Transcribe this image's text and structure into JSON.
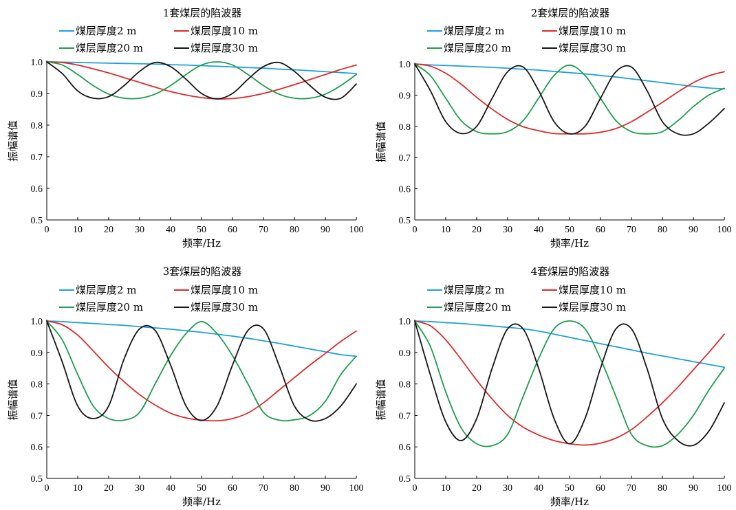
{
  "colors": {
    "series": [
      "#1ea0dc",
      "#e02828",
      "#1a9e4a",
      "#141414"
    ],
    "axis": "#000000"
  },
  "legend_placement": "top",
  "chart_data": [
    {
      "type": "line",
      "title": "1套煤层的陷波器",
      "xlabel": "频率/Hz",
      "ylabel": "振幅谱值",
      "xlim": [
        0,
        100
      ],
      "ylim": [
        0.5,
        1.0
      ],
      "xticks": [
        "0",
        "10",
        "20",
        "30",
        "40",
        "50",
        "60",
        "70",
        "80",
        "90",
        "100"
      ],
      "yticks": [
        "0.5",
        "0.6",
        "0.7",
        "0.8",
        "0.9",
        "1.0"
      ],
      "grid": false,
      "x": [
        0,
        5,
        10,
        15,
        20,
        25,
        30,
        35,
        40,
        45,
        50,
        55,
        60,
        65,
        70,
        75,
        80,
        85,
        90,
        95,
        100
      ],
      "series": [
        {
          "name": "煤层厚度2 m",
          "values": [
            1.0,
            0.999,
            0.998,
            0.997,
            0.996,
            0.995,
            0.994,
            0.993,
            0.991,
            0.99,
            0.988,
            0.986,
            0.984,
            0.982,
            0.98,
            0.977,
            0.975,
            0.972,
            0.969,
            0.966,
            0.963
          ]
        },
        {
          "name": "煤层厚度10 m",
          "values": [
            1.0,
            0.998,
            0.99,
            0.978,
            0.965,
            0.95,
            0.935,
            0.92,
            0.906,
            0.895,
            0.887,
            0.883,
            0.884,
            0.89,
            0.9,
            0.913,
            0.928,
            0.944,
            0.96,
            0.976,
            0.99
          ]
        },
        {
          "name": "煤层厚度20 m",
          "values": [
            1.0,
            0.99,
            0.96,
            0.925,
            0.898,
            0.885,
            0.885,
            0.898,
            0.925,
            0.96,
            0.99,
            1.0,
            0.99,
            0.96,
            0.925,
            0.898,
            0.885,
            0.885,
            0.898,
            0.925,
            0.96
          ]
        },
        {
          "name": "煤层厚度30 m",
          "values": [
            1.0,
            0.963,
            0.908,
            0.885,
            0.89,
            0.925,
            0.97,
            0.998,
            0.985,
            0.945,
            0.9,
            0.883,
            0.9,
            0.945,
            0.985,
            0.998,
            0.97,
            0.925,
            0.888,
            0.885,
            0.93
          ]
        }
      ]
    },
    {
      "type": "line",
      "title": "2套煤层的陷波器",
      "xlabel": "频率/Hz",
      "ylabel": "振幅谱值",
      "xlim": [
        0,
        100
      ],
      "ylim": [
        0.5,
        1.0
      ],
      "xticks": [
        "0",
        "10",
        "20",
        "30",
        "40",
        "50",
        "60",
        "70",
        "80",
        "90",
        "100"
      ],
      "yticks": [
        "0.5",
        "0.6",
        "0.7",
        "0.8",
        "0.9",
        "1.0"
      ],
      "grid": false,
      "x": [
        0,
        5,
        10,
        15,
        20,
        25,
        30,
        35,
        40,
        45,
        50,
        55,
        60,
        65,
        70,
        75,
        80,
        85,
        90,
        95,
        100
      ],
      "series": [
        {
          "name": "煤层厚度2 m",
          "values": [
            1.0,
            0.997,
            0.995,
            0.993,
            0.991,
            0.989,
            0.986,
            0.983,
            0.98,
            0.976,
            0.972,
            0.968,
            0.963,
            0.958,
            0.952,
            0.946,
            0.94,
            0.934,
            0.928,
            0.923,
            0.92
          ]
        },
        {
          "name": "煤层厚度10 m",
          "values": [
            1.0,
            0.993,
            0.97,
            0.935,
            0.893,
            0.855,
            0.822,
            0.799,
            0.786,
            0.777,
            0.776,
            0.776,
            0.781,
            0.793,
            0.815,
            0.845,
            0.877,
            0.91,
            0.94,
            0.962,
            0.975
          ]
        },
        {
          "name": "煤层厚度20 m",
          "values": [
            1.0,
            0.963,
            0.89,
            0.818,
            0.783,
            0.776,
            0.783,
            0.818,
            0.89,
            0.963,
            0.996,
            0.963,
            0.89,
            0.818,
            0.783,
            0.776,
            0.783,
            0.818,
            0.863,
            0.9,
            0.922
          ]
        },
        {
          "name": "煤层厚度30 m",
          "values": [
            1.0,
            0.915,
            0.815,
            0.777,
            0.8,
            0.89,
            0.975,
            0.99,
            0.915,
            0.815,
            0.776,
            0.8,
            0.89,
            0.975,
            0.99,
            0.915,
            0.815,
            0.776,
            0.776,
            0.81,
            0.857
          ]
        }
      ]
    },
    {
      "type": "line",
      "title": "3套煤层的陷波器",
      "xlabel": "频率/Hz",
      "ylabel": "振幅谱值",
      "xlim": [
        0,
        100
      ],
      "ylim": [
        0.5,
        1.0
      ],
      "xticks": [
        "0",
        "10",
        "20",
        "30",
        "40",
        "50",
        "60",
        "70",
        "80",
        "90",
        "100"
      ],
      "yticks": [
        "0.5",
        "0.6",
        "0.7",
        "0.8",
        "0.9",
        "1.0"
      ],
      "grid": false,
      "x": [
        0,
        5,
        10,
        15,
        20,
        25,
        30,
        35,
        40,
        45,
        50,
        55,
        60,
        65,
        70,
        75,
        80,
        85,
        90,
        95,
        100
      ],
      "series": [
        {
          "name": "煤层厚度2 m",
          "values": [
            1.0,
            0.998,
            0.995,
            0.992,
            0.989,
            0.986,
            0.982,
            0.978,
            0.974,
            0.969,
            0.964,
            0.958,
            0.952,
            0.945,
            0.937,
            0.929,
            0.92,
            0.911,
            0.902,
            0.893,
            0.888
          ]
        },
        {
          "name": "煤层厚度10 m",
          "values": [
            1.0,
            0.988,
            0.955,
            0.905,
            0.853,
            0.807,
            0.766,
            0.733,
            0.707,
            0.692,
            0.685,
            0.683,
            0.69,
            0.708,
            0.74,
            0.78,
            0.82,
            0.86,
            0.897,
            0.935,
            0.968
          ]
        },
        {
          "name": "煤层厚度20 m",
          "values": [
            1.0,
            0.94,
            0.83,
            0.73,
            0.69,
            0.685,
            0.71,
            0.8,
            0.89,
            0.96,
            0.998,
            0.96,
            0.89,
            0.8,
            0.71,
            0.685,
            0.686,
            0.7,
            0.745,
            0.83,
            0.888
          ]
        },
        {
          "name": "煤层厚度30 m",
          "values": [
            1.0,
            0.87,
            0.73,
            0.69,
            0.73,
            0.88,
            0.975,
            0.97,
            0.86,
            0.73,
            0.684,
            0.73,
            0.86,
            0.97,
            0.975,
            0.86,
            0.73,
            0.685,
            0.69,
            0.73,
            0.8
          ]
        }
      ]
    },
    {
      "type": "line",
      "title": "4套煤层的陷波器",
      "xlabel": "频率/Hz",
      "ylabel": "振幅谱值",
      "xlim": [
        0,
        100
      ],
      "ylim": [
        0.5,
        1.0
      ],
      "xticks": [
        "0",
        "10",
        "20",
        "30",
        "40",
        "50",
        "60",
        "70",
        "80",
        "90",
        "100"
      ],
      "yticks": [
        "0.5",
        "0.6",
        "0.7",
        "0.8",
        "0.9",
        "1.0"
      ],
      "grid": false,
      "x": [
        0,
        5,
        10,
        15,
        20,
        25,
        30,
        35,
        40,
        45,
        50,
        55,
        60,
        65,
        70,
        75,
        80,
        85,
        90,
        95,
        100
      ],
      "series": [
        {
          "name": "煤层厚度2 m",
          "values": [
            1.0,
            0.998,
            0.995,
            0.992,
            0.988,
            0.984,
            0.98,
            0.975,
            0.968,
            0.958,
            0.948,
            0.938,
            0.928,
            0.918,
            0.908,
            0.898,
            0.889,
            0.88,
            0.871,
            0.862,
            0.853
          ]
        },
        {
          "name": "煤层厚度10 m",
          "values": [
            1.0,
            0.985,
            0.94,
            0.878,
            0.812,
            0.752,
            0.7,
            0.663,
            0.638,
            0.62,
            0.61,
            0.606,
            0.612,
            0.628,
            0.655,
            0.695,
            0.74,
            0.79,
            0.845,
            0.9,
            0.958
          ]
        },
        {
          "name": "煤层厚度20 m",
          "values": [
            1.0,
            0.92,
            0.775,
            0.66,
            0.61,
            0.604,
            0.64,
            0.76,
            0.88,
            0.975,
            1.0,
            0.975,
            0.88,
            0.76,
            0.64,
            0.604,
            0.604,
            0.64,
            0.7,
            0.78,
            0.85
          ]
        },
        {
          "name": "煤层厚度30 m",
          "values": [
            1.0,
            0.83,
            0.68,
            0.62,
            0.69,
            0.85,
            0.975,
            0.975,
            0.85,
            0.69,
            0.61,
            0.69,
            0.85,
            0.975,
            0.975,
            0.85,
            0.69,
            0.62,
            0.605,
            0.65,
            0.74
          ]
        }
      ]
    }
  ]
}
